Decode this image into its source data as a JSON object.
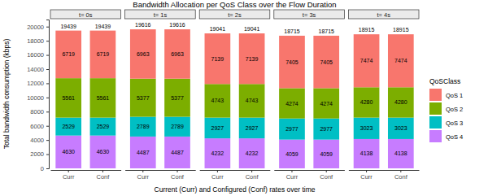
{
  "chart_data": {
    "type": "bar",
    "title": "Bandwidth Allocation per QoS Class over the Flow Duration",
    "x_label": "Current (Curr) and Configured (Conf) rates over time",
    "y_label": "Total bandwidth consumption (kbps)",
    "legend_title": "QoSClass",
    "legend": "right",
    "stacked": true,
    "data_labels": true,
    "facets": [
      "t= 0s",
      "t= 1s",
      "t= 2s",
      "t= 3s",
      "t= 4s"
    ],
    "categories": [
      "Curr",
      "Conf"
    ],
    "series": [
      {
        "name": "QoS 1",
        "color": "#F8766D",
        "values": [
          [
            6719,
            6719
          ],
          [
            6963,
            6963
          ],
          [
            7139,
            7139
          ],
          [
            7405,
            7405
          ],
          [
            7474,
            7474
          ]
        ]
      },
      {
        "name": "QoS 2",
        "color": "#7CAE00",
        "values": [
          [
            5561,
            5561
          ],
          [
            5377,
            5377
          ],
          [
            4743,
            4743
          ],
          [
            4274,
            4274
          ],
          [
            4280,
            4280
          ]
        ]
      },
      {
        "name": "QoS 3",
        "color": "#00BFC4",
        "values": [
          [
            2529,
            2529
          ],
          [
            2789,
            2789
          ],
          [
            2927,
            2927
          ],
          [
            2977,
            2977
          ],
          [
            3023,
            3023
          ]
        ]
      },
      {
        "name": "QoS 4",
        "color": "#C77CFF",
        "values": [
          [
            4630,
            4630
          ],
          [
            4487,
            4487
          ],
          [
            4232,
            4232
          ],
          [
            4059,
            4059
          ],
          [
            4138,
            4138
          ]
        ]
      }
    ],
    "totals": [
      [
        19439,
        19439
      ],
      [
        19616,
        19616
      ],
      [
        19041,
        19041
      ],
      [
        18715,
        18715
      ],
      [
        18915,
        18915
      ]
    ],
    "ylim": [
      0,
      21000
    ],
    "yticks": [
      0,
      2000,
      4000,
      6000,
      8000,
      10000,
      12000,
      14000,
      16000,
      18000,
      20000
    ]
  }
}
